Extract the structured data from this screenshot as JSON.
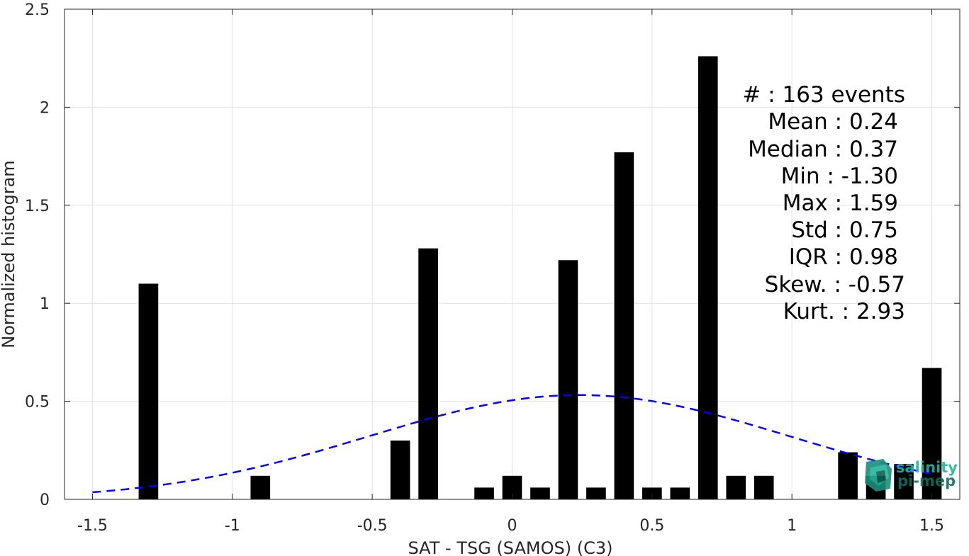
{
  "chart_data": {
    "type": "bar",
    "xlabel": "SAT - TSG (SAMOS) (C3)",
    "ylabel": "Normalized histogram",
    "xlim": [
      -1.6,
      1.6
    ],
    "ylim": [
      0,
      2.5
    ],
    "xticks": [
      -1.5,
      -1,
      -0.5,
      0,
      0.5,
      1,
      1.5
    ],
    "xtick_labels": [
      "-1.5",
      "-1",
      "-0.5",
      "0",
      "0.5",
      "1",
      "1.5"
    ],
    "yticks": [
      0,
      0.5,
      1,
      1.5,
      2,
      2.5
    ],
    "ytick_labels": [
      "0",
      "0.5",
      "1",
      "1.5",
      "2",
      "2.5"
    ],
    "grid": true,
    "bin_width": 0.1,
    "bar_color": "#000000",
    "bars": [
      {
        "x": -1.3,
        "y": 1.1
      },
      {
        "x": -0.9,
        "y": 0.12
      },
      {
        "x": -0.4,
        "y": 0.3
      },
      {
        "x": -0.3,
        "y": 1.28
      },
      {
        "x": -0.1,
        "y": 0.06
      },
      {
        "x": 0.0,
        "y": 0.12
      },
      {
        "x": 0.1,
        "y": 0.06
      },
      {
        "x": 0.2,
        "y": 1.22
      },
      {
        "x": 0.3,
        "y": 0.06
      },
      {
        "x": 0.4,
        "y": 1.77
      },
      {
        "x": 0.5,
        "y": 0.06
      },
      {
        "x": 0.6,
        "y": 0.06
      },
      {
        "x": 0.7,
        "y": 2.26
      },
      {
        "x": 0.8,
        "y": 0.12
      },
      {
        "x": 0.9,
        "y": 0.12
      },
      {
        "x": 1.2,
        "y": 0.24
      },
      {
        "x": 1.3,
        "y": 0.12
      },
      {
        "x": 1.4,
        "y": 0.18
      },
      {
        "x": 1.5,
        "y": 0.67
      }
    ],
    "fit_curve": {
      "type": "gaussian",
      "mean": 0.24,
      "std": 0.75,
      "x_range": [
        -1.5,
        1.5
      ],
      "color": "#0000ff",
      "style": "dashed"
    },
    "stats": {
      "count_line": "#  : 163 events",
      "mean_line": "Mean : 0.24",
      "median_line": "Median : 0.37",
      "min_line": "Min : -1.30",
      "max_line": "Max : 1.59",
      "std_line": "Std : 0.75",
      "iqr_line": "IQR : 0.98",
      "skew_line": "Skew. : -0.57",
      "kurt_line": "Kurt. : 2.93"
    }
  },
  "logo": {
    "line1": "salinity",
    "line2": "pi-mep",
    "color1": "#1fb5a0",
    "color2": "#0d6e5e"
  }
}
